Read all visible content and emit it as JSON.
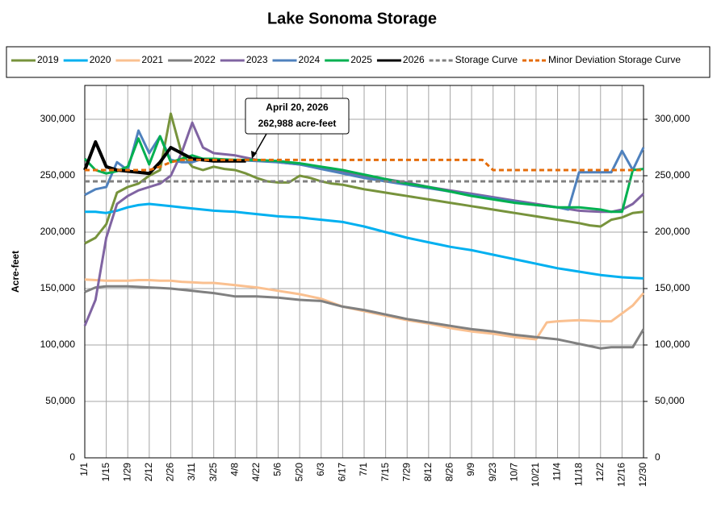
{
  "chart_data": {
    "type": "line",
    "title": "Lake Sonoma Storage",
    "y_label": "Acre-feet",
    "x": [
      0,
      7,
      14,
      21,
      28,
      35,
      42,
      49,
      56,
      63,
      70,
      77,
      84,
      91,
      98,
      105,
      112,
      119,
      126,
      133,
      140,
      147,
      154,
      161,
      168,
      175,
      182,
      189,
      196,
      203,
      210,
      217,
      224,
      231,
      238,
      245,
      252,
      259,
      266,
      273,
      280,
      287,
      294,
      301,
      308,
      315,
      322,
      329,
      336,
      343,
      350,
      357,
      364
    ],
    "xlim": [
      0,
      364
    ],
    "xticks": [
      {
        "value": 0,
        "label": "1/1"
      },
      {
        "value": 14,
        "label": "1/15"
      },
      {
        "value": 28,
        "label": "1/29"
      },
      {
        "value": 42,
        "label": "2/12"
      },
      {
        "value": 56,
        "label": "2/26"
      },
      {
        "value": 70,
        "label": "3/11"
      },
      {
        "value": 84,
        "label": "3/25"
      },
      {
        "value": 98,
        "label": "4/8"
      },
      {
        "value": 112,
        "label": "4/22"
      },
      {
        "value": 126,
        "label": "5/6"
      },
      {
        "value": 140,
        "label": "5/20"
      },
      {
        "value": 154,
        "label": "6/3"
      },
      {
        "value": 168,
        "label": "6/17"
      },
      {
        "value": 182,
        "label": "7/1"
      },
      {
        "value": 196,
        "label": "7/15"
      },
      {
        "value": 210,
        "label": "7/29"
      },
      {
        "value": 224,
        "label": "8/12"
      },
      {
        "value": 238,
        "label": "8/26"
      },
      {
        "value": 252,
        "label": "9/9"
      },
      {
        "value": 266,
        "label": "9/23"
      },
      {
        "value": 280,
        "label": "10/7"
      },
      {
        "value": 294,
        "label": "10/21"
      },
      {
        "value": 308,
        "label": "11/4"
      },
      {
        "value": 322,
        "label": "11/18"
      },
      {
        "value": 336,
        "label": "12/2"
      },
      {
        "value": 350,
        "label": "12/16"
      },
      {
        "value": 364,
        "label": "12/30"
      }
    ],
    "ylim": [
      0,
      330000
    ],
    "yticks": [
      0,
      {
        "value": 50000,
        "label": "50,000"
      },
      {
        "value": 100000,
        "label": "100,000"
      },
      {
        "value": 150000,
        "label": "150,000"
      },
      {
        "value": 200000,
        "label": "200,000"
      },
      {
        "value": 250000,
        "label": "250,000"
      },
      {
        "value": 300000,
        "label": "300,000"
      }
    ],
    "y2lim": [
      0,
      330000
    ],
    "y2ticks": [
      0,
      {
        "value": 50000,
        "label": "50,000"
      },
      {
        "value": 100000,
        "label": "100,000"
      },
      {
        "value": 150000,
        "label": "150,000"
      },
      {
        "value": 200000,
        "label": "200,000"
      },
      {
        "value": 250000,
        "label": "250,000"
      },
      {
        "value": 300000,
        "label": "300,000"
      }
    ],
    "grid": true,
    "legend": "top",
    "annotation": [
      "April 20, 2026",
      "262,988 acre-feet"
    ],
    "series": [
      {
        "name": "2019",
        "color": "#77933c",
        "values": [
          190000,
          195000,
          207000,
          235000,
          240000,
          243000,
          250000,
          255000,
          305000,
          270000,
          258000,
          255000,
          258000,
          256000,
          255000,
          252000,
          248000,
          245000,
          244000,
          244000,
          250000,
          248000,
          245000,
          243000,
          242000,
          240000,
          238000,
          236500,
          235000,
          233500,
          232000,
          230500,
          229000,
          227500,
          226000,
          224500,
          223000,
          221500,
          220000,
          218500,
          217000,
          215500,
          214000,
          212500,
          211000,
          209500,
          208000,
          206000,
          205000,
          211000,
          213000,
          217000,
          218000
        ]
      },
      {
        "name": "2020",
        "color": "#00b0f0",
        "values": [
          218000,
          218000,
          217000,
          219000,
          222000,
          224000,
          225000,
          224000,
          223000,
          222000,
          221000,
          220000,
          219000,
          218500,
          218000,
          217000,
          216000,
          215000,
          214000,
          213500,
          213000,
          212000,
          211000,
          210000,
          209000,
          207000,
          205000,
          202500,
          200000,
          197500,
          195000,
          193000,
          191000,
          189000,
          187000,
          185500,
          184000,
          182000,
          180000,
          178000,
          176000,
          174000,
          172000,
          170000,
          168000,
          166500,
          165000,
          163500,
          162000,
          161000,
          160000,
          159500,
          159000
        ]
      },
      {
        "name": "2021",
        "color": "#fac090",
        "values": [
          158000,
          157500,
          157000,
          157000,
          157000,
          157500,
          157500,
          157000,
          157000,
          156000,
          155500,
          155000,
          155000,
          154000,
          153000,
          152000,
          151000,
          149500,
          148000,
          146500,
          145000,
          143000,
          141000,
          137500,
          134000,
          132000,
          130000,
          128000,
          126000,
          124000,
          122000,
          120500,
          119000,
          117000,
          115000,
          113500,
          112000,
          111000,
          110000,
          108500,
          107000,
          106000,
          105000,
          120000,
          121000,
          121500,
          122000,
          121500,
          121000,
          121000,
          128000,
          135000,
          146000
        ]
      },
      {
        "name": "2022",
        "color": "#808080",
        "values": [
          147000,
          151000,
          152000,
          152000,
          152000,
          151500,
          151000,
          150500,
          150000,
          149000,
          148000,
          147000,
          146000,
          144500,
          143000,
          143000,
          143000,
          142500,
          142000,
          141000,
          140000,
          139500,
          139000,
          136500,
          134000,
          132500,
          131000,
          129000,
          127000,
          125000,
          123000,
          121500,
          120000,
          118500,
          117000,
          115500,
          114000,
          113000,
          112000,
          110500,
          109000,
          108000,
          107000,
          106000,
          105000,
          103000,
          101000,
          99000,
          97000,
          98000,
          98000,
          98000,
          114000
        ]
      },
      {
        "name": "2023",
        "color": "#8064a2",
        "values": [
          117000,
          140000,
          195000,
          225000,
          232000,
          237000,
          240000,
          243000,
          250000,
          270000,
          297000,
          275000,
          270000,
          269000,
          268000,
          266000,
          264000,
          263000,
          262000,
          261000,
          260000,
          258500,
          257000,
          255000,
          253000,
          251500,
          250000,
          248500,
          247000,
          245500,
          244000,
          242000,
          240000,
          238500,
          237000,
          235500,
          234000,
          232500,
          231000,
          229500,
          228000,
          226500,
          225000,
          223500,
          222000,
          220500,
          219000,
          218500,
          218000,
          218000,
          220000,
          225000,
          234000
        ]
      },
      {
        "name": "2024",
        "color": "#4f81bd",
        "values": [
          233000,
          238000,
          240000,
          262000,
          255000,
          290000,
          270000,
          285000,
          264000,
          262000,
          262000,
          265000,
          265000,
          264000,
          264000,
          263500,
          263000,
          262500,
          262000,
          261000,
          260000,
          258000,
          256000,
          254000,
          252000,
          250000,
          248000,
          246500,
          245000,
          243500,
          242000,
          240500,
          239000,
          237500,
          236000,
          234500,
          233000,
          231500,
          230000,
          228500,
          227000,
          225500,
          224000,
          223000,
          222000,
          220000,
          253000,
          253000,
          253000,
          253000,
          272000,
          255000,
          275000
        ]
      },
      {
        "name": "2025",
        "color": "#00b050",
        "values": [
          265000,
          255000,
          252000,
          254000,
          258000,
          283000,
          260000,
          285000,
          262000,
          265000,
          268000,
          265000,
          265000,
          264500,
          264000,
          264000,
          264000,
          263500,
          263000,
          262000,
          261000,
          259500,
          258000,
          256500,
          255000,
          253000,
          251000,
          249000,
          247000,
          245000,
          243000,
          241500,
          240000,
          238000,
          236000,
          234000,
          232000,
          230500,
          229000,
          227500,
          226000,
          225000,
          224000,
          223000,
          222000,
          222000,
          222000,
          221000,
          220000,
          218000,
          218000,
          255000,
          256000
        ]
      },
      {
        "name": "2026",
        "color": "#000000",
        "values": [
          255000,
          280000,
          258000,
          255000,
          254000,
          253000,
          252000,
          262000,
          275000,
          270000,
          265000,
          264000,
          263000,
          263000,
          263000,
          263000,
          null,
          null,
          null,
          null,
          null,
          null,
          null,
          null,
          null,
          null,
          null,
          null,
          null,
          null,
          null,
          null,
          null,
          null,
          null,
          null,
          null,
          null,
          null,
          null,
          null,
          null,
          null,
          null,
          null,
          null,
          null,
          null,
          null,
          null,
          null,
          null,
          null
        ]
      },
      {
        "name": "Storage Curve",
        "color": "#808080",
        "dash": true,
        "values": [
          245000,
          245000,
          245000,
          245000,
          245000,
          245000,
          245000,
          245000,
          245000,
          245000,
          245000,
          245000,
          245000,
          245000,
          245000,
          245000,
          245000,
          245000,
          245000,
          245000,
          245000,
          245000,
          245000,
          245000,
          245000,
          245000,
          245000,
          245000,
          245000,
          245000,
          245000,
          245000,
          245000,
          245000,
          245000,
          245000,
          245000,
          245000,
          245000,
          245000,
          245000,
          245000,
          245000,
          245000,
          245000,
          245000,
          245000,
          245000,
          245000,
          245000,
          245000,
          245000,
          245000
        ]
      },
      {
        "name": "Minor Deviation Storage Curve",
        "color": "#e46c0a",
        "dash": true,
        "values": [
          255000,
          255000,
          255000,
          255000,
          255000,
          255000,
          255000,
          258000,
          262000,
          264000,
          264000,
          264000,
          264000,
          264000,
          264000,
          264000,
          264000,
          264000,
          264000,
          264000,
          264000,
          264000,
          264000,
          264000,
          264000,
          264000,
          264000,
          264000,
          264000,
          264000,
          264000,
          264000,
          264000,
          264000,
          264000,
          264000,
          264000,
          264000,
          255000,
          255000,
          255000,
          255000,
          255000,
          255000,
          255000,
          255000,
          255000,
          255000,
          255000,
          255000,
          255000,
          255000,
          255000
        ]
      }
    ]
  }
}
